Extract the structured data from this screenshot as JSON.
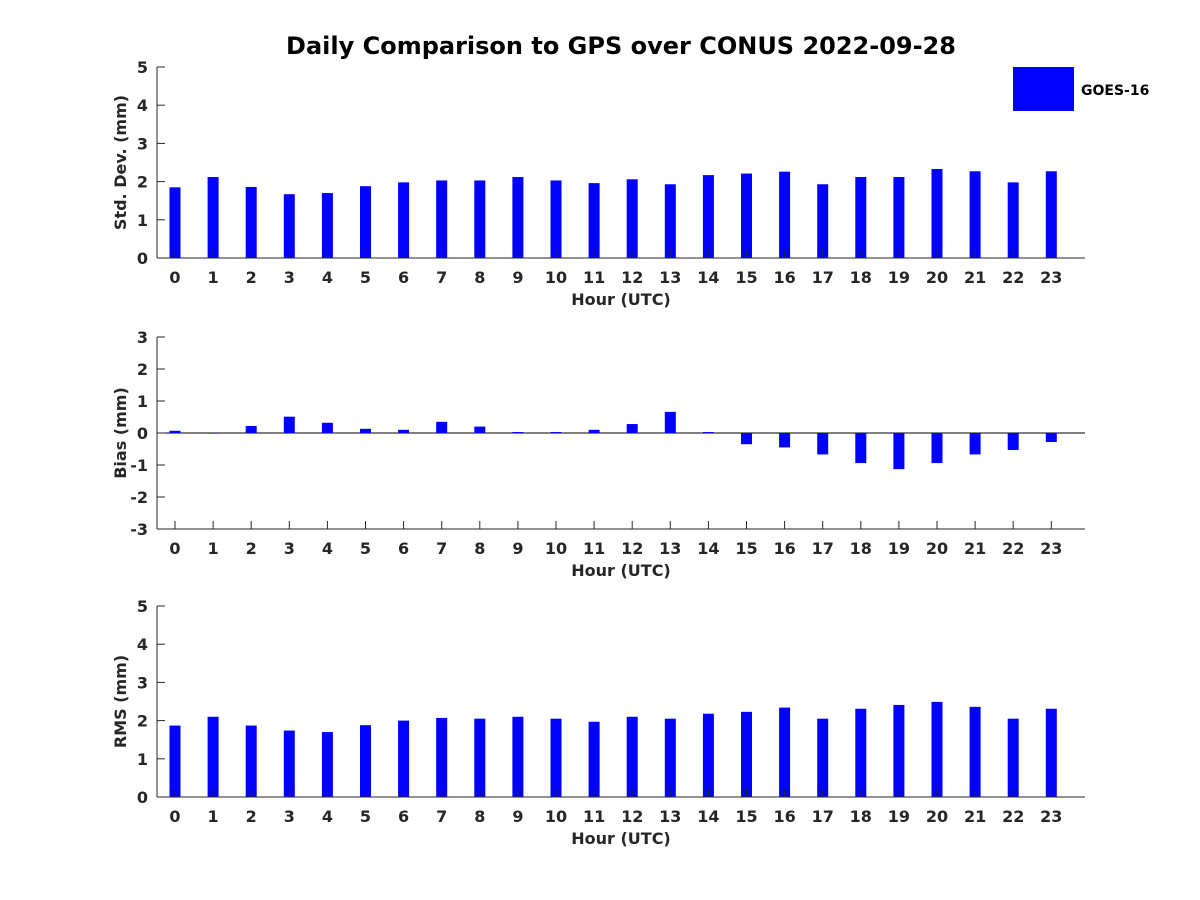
{
  "chart_data": {
    "type": "bar",
    "title": "Daily Comparison to GPS over CONUS 2022-09-28",
    "series_name": "GOES-16",
    "color": "#0000ff",
    "categories": [
      "0",
      "1",
      "2",
      "3",
      "4",
      "5",
      "6",
      "7",
      "8",
      "9",
      "10",
      "11",
      "12",
      "13",
      "14",
      "15",
      "16",
      "17",
      "18",
      "19",
      "20",
      "21",
      "22",
      "23"
    ],
    "panels": [
      {
        "ylabel": "Std. Dev. (mm)",
        "xlabel": "Hour (UTC)",
        "ylim": [
          0,
          5
        ],
        "yticks": [
          "0",
          "1",
          "2",
          "3",
          "4",
          "5"
        ],
        "values": [
          1.85,
          2.12,
          1.86,
          1.67,
          1.7,
          1.88,
          1.98,
          2.03,
          2.03,
          2.12,
          2.03,
          1.96,
          2.06,
          1.93,
          2.17,
          2.21,
          2.26,
          1.93,
          2.12,
          2.12,
          2.33,
          2.27,
          1.98,
          2.27
        ]
      },
      {
        "ylabel": "Bias (mm)",
        "xlabel": "Hour (UTC)",
        "ylim": [
          -3,
          3
        ],
        "yticks": [
          "-3",
          "-2",
          "-1",
          "0",
          "1",
          "2",
          "3"
        ],
        "values": [
          0.07,
          -0.02,
          0.22,
          0.51,
          0.32,
          0.13,
          0.1,
          0.35,
          0.2,
          0.03,
          0.03,
          0.1,
          0.28,
          0.66,
          0.03,
          -0.35,
          -0.45,
          -0.67,
          -0.94,
          -1.13,
          -0.94,
          -0.67,
          -0.53,
          -0.28
        ]
      },
      {
        "ylabel": "RMS (mm)",
        "xlabel": "Hour (UTC)",
        "ylim": [
          0,
          5
        ],
        "yticks": [
          "0",
          "1",
          "2",
          "3",
          "4",
          "5"
        ],
        "values": [
          1.87,
          2.1,
          1.87,
          1.74,
          1.7,
          1.88,
          2.0,
          2.07,
          2.05,
          2.1,
          2.05,
          1.97,
          2.1,
          2.05,
          2.18,
          2.23,
          2.34,
          2.05,
          2.31,
          2.41,
          2.49,
          2.36,
          2.05,
          2.31
        ]
      }
    ]
  }
}
